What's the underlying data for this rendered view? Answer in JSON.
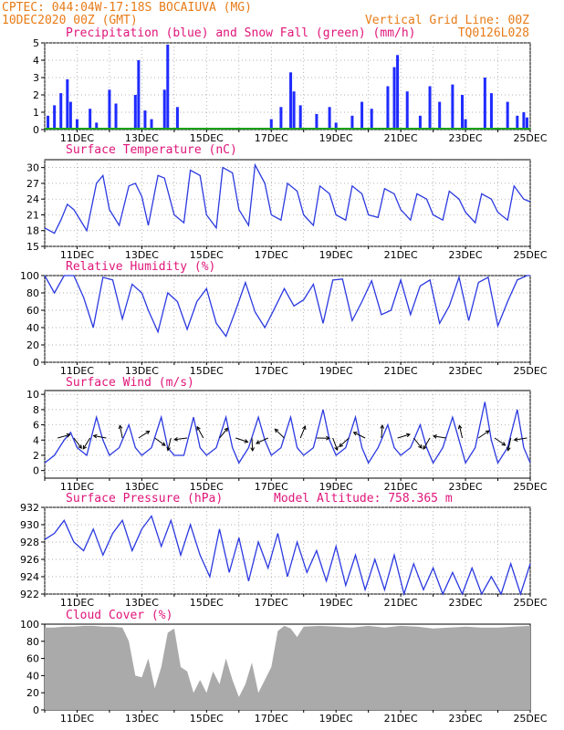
{
  "header": {
    "line1": "CPTEC:   044:04W-17:18S   BOCAIUVA (MG)",
    "line2_left": "10DEC2020 00Z (GMT)",
    "line2_right": "Vertical Grid Line: 00Z",
    "code": "TQ0126L028"
  },
  "colors": {
    "header": "#e87b17",
    "titles": "#e0157a",
    "line": "#2b39e0",
    "bar": "#1f2bff",
    "snow": "#19a319",
    "cloud": "#aaaaaa",
    "arrow": "#000000"
  },
  "chart_data": [
    {
      "type": "bar",
      "title": "Precipitation (blue) and Snow Fall (green) (mm/h)",
      "xlabel": "",
      "ylabel": "",
      "x_range_days": [
        10,
        25
      ],
      "x_tick_labels": [
        "11DEC",
        "13DEC",
        "15DEC",
        "17DEC",
        "19DEC",
        "21DEC",
        "23DEC",
        "25DEC"
      ],
      "ylim": [
        0,
        5
      ],
      "y_ticks": [
        0,
        1,
        2,
        3,
        4,
        5
      ],
      "grid": true,
      "series": [
        {
          "name": "Precipitation",
          "color": "blue",
          "x": [
            10.1,
            10.3,
            10.5,
            10.7,
            10.8,
            11.0,
            11.4,
            11.6,
            12.0,
            12.2,
            12.8,
            12.9,
            13.1,
            13.3,
            13.7,
            13.8,
            14.1,
            17.0,
            17.3,
            17.6,
            17.7,
            17.9,
            18.4,
            18.8,
            19.0,
            19.5,
            19.8,
            20.1,
            20.6,
            20.8,
            20.9,
            21.2,
            21.6,
            21.9,
            22.2,
            22.6,
            22.9,
            23.0,
            23.6,
            23.8,
            24.3,
            24.6,
            24.8,
            24.9
          ],
          "values": [
            0.8,
            1.4,
            2.1,
            2.9,
            1.6,
            0.6,
            1.2,
            0.4,
            2.3,
            1.5,
            2.0,
            4.0,
            1.1,
            0.6,
            2.3,
            4.9,
            1.3,
            0.6,
            1.3,
            3.3,
            2.2,
            1.4,
            0.9,
            1.3,
            0.4,
            0.8,
            1.6,
            1.2,
            2.5,
            3.6,
            4.3,
            2.2,
            0.8,
            2.5,
            1.6,
            2.6,
            2.0,
            0.6,
            3.0,
            2.1,
            1.6,
            0.8,
            1.0,
            0.7
          ]
        },
        {
          "name": "Snow Fall",
          "color": "green",
          "x": [
            10,
            25
          ],
          "values": [
            0,
            0
          ]
        }
      ]
    },
    {
      "type": "line",
      "title": "Surface Temperature (nC)",
      "xlabel": "",
      "ylabel": "",
      "x_range_days": [
        10,
        25
      ],
      "x_tick_labels": [
        "11DEC",
        "13DEC",
        "15DEC",
        "17DEC",
        "19DEC",
        "21DEC",
        "23DEC",
        "25DEC"
      ],
      "ylim": [
        15,
        31.5
      ],
      "y_ticks": [
        15,
        18,
        21,
        24,
        27,
        30
      ],
      "grid": true,
      "x": [
        10.0,
        10.3,
        10.5,
        10.7,
        10.9,
        11.0,
        11.3,
        11.6,
        11.8,
        12.0,
        12.3,
        12.6,
        12.8,
        13.0,
        13.2,
        13.5,
        13.7,
        14.0,
        14.3,
        14.5,
        14.8,
        15.0,
        15.3,
        15.5,
        15.8,
        16.0,
        16.3,
        16.5,
        16.8,
        17.0,
        17.3,
        17.5,
        17.8,
        18.0,
        18.3,
        18.5,
        18.8,
        19.0,
        19.3,
        19.5,
        19.8,
        20.0,
        20.3,
        20.5,
        20.8,
        21.0,
        21.3,
        21.5,
        21.8,
        22.0,
        22.3,
        22.5,
        22.8,
        23.0,
        23.3,
        23.5,
        23.8,
        24.0,
        24.3,
        24.5,
        24.8,
        25.0
      ],
      "values": [
        18.5,
        17.5,
        20.0,
        23.0,
        22.0,
        21.0,
        18.0,
        27.0,
        28.5,
        22.0,
        19.0,
        26.5,
        27.0,
        24.5,
        19.0,
        28.5,
        28.0,
        21.0,
        19.5,
        29.5,
        28.5,
        21.0,
        18.5,
        30.0,
        29.0,
        22.0,
        19.0,
        30.5,
        27.0,
        21.0,
        20.0,
        27.0,
        25.5,
        21.0,
        19.0,
        26.5,
        25.0,
        21.0,
        20.0,
        26.5,
        25.0,
        21.0,
        20.5,
        26.0,
        25.0,
        22.0,
        20.0,
        25.0,
        24.0,
        21.0,
        20.0,
        25.5,
        24.0,
        21.5,
        19.5,
        25.0,
        24.0,
        21.5,
        20.0,
        26.5,
        24.0,
        23.5
      ]
    },
    {
      "type": "line",
      "title": "Relative Humidity (%)",
      "xlabel": "",
      "ylabel": "",
      "x_range_days": [
        10,
        25
      ],
      "x_tick_labels": [
        "11DEC",
        "13DEC",
        "15DEC",
        "17DEC",
        "19DEC",
        "21DEC",
        "23DEC",
        "25DEC"
      ],
      "ylim": [
        0,
        100
      ],
      "y_ticks": [
        0,
        20,
        40,
        60,
        80,
        100
      ],
      "grid": true,
      "x": [
        10.0,
        10.3,
        10.6,
        10.9,
        11.2,
        11.5,
        11.8,
        12.1,
        12.4,
        12.7,
        13.0,
        13.2,
        13.5,
        13.8,
        14.1,
        14.4,
        14.7,
        15.0,
        15.3,
        15.6,
        15.9,
        16.2,
        16.5,
        16.8,
        17.1,
        17.4,
        17.7,
        18.0,
        18.3,
        18.6,
        18.9,
        19.2,
        19.5,
        19.8,
        20.1,
        20.4,
        20.7,
        21.0,
        21.3,
        21.6,
        21.9,
        22.2,
        22.5,
        22.8,
        23.1,
        23.4,
        23.7,
        24.0,
        24.3,
        24.6,
        24.9,
        25.0
      ],
      "values": [
        100,
        80,
        100,
        100,
        75,
        40,
        98,
        95,
        50,
        90,
        80,
        60,
        35,
        80,
        70,
        38,
        70,
        85,
        45,
        30,
        60,
        92,
        58,
        40,
        62,
        85,
        65,
        72,
        90,
        45,
        95,
        96,
        48,
        70,
        94,
        55,
        60,
        95,
        55,
        88,
        95,
        45,
        65,
        98,
        48,
        92,
        98,
        42,
        70,
        95,
        100,
        100
      ]
    },
    {
      "type": "line",
      "title": "Surface Wind (m/s)",
      "xlabel": "",
      "ylabel": "",
      "x_range_days": [
        10,
        25
      ],
      "x_tick_labels": [
        "11DEC",
        "13DEC",
        "15DEC",
        "17DEC",
        "19DEC",
        "21DEC",
        "23DEC",
        "25DEC"
      ],
      "ylim": [
        -1,
        10.5
      ],
      "y_ticks": [
        0,
        2,
        4,
        6,
        8,
        10
      ],
      "grid": true,
      "x": [
        10.0,
        10.3,
        10.6,
        10.8,
        11.0,
        11.3,
        11.6,
        11.8,
        12.0,
        12.3,
        12.6,
        12.8,
        13.0,
        13.3,
        13.6,
        13.8,
        14.0,
        14.3,
        14.6,
        14.8,
        15.0,
        15.3,
        15.6,
        15.8,
        16.0,
        16.3,
        16.6,
        16.8,
        17.0,
        17.3,
        17.6,
        17.8,
        18.0,
        18.3,
        18.6,
        18.8,
        19.0,
        19.3,
        19.6,
        19.8,
        20.0,
        20.3,
        20.6,
        20.8,
        21.0,
        21.3,
        21.6,
        21.8,
        22.0,
        22.3,
        22.6,
        22.8,
        23.0,
        23.3,
        23.6,
        23.8,
        24.0,
        24.3,
        24.6,
        24.8,
        25.0
      ],
      "values": [
        1,
        2,
        4,
        5,
        3,
        2,
        7,
        4,
        2,
        3,
        6,
        3,
        2,
        3,
        7,
        3,
        2,
        2,
        7,
        3,
        2,
        3,
        7,
        3,
        1,
        3,
        7,
        4,
        2,
        3,
        7,
        3,
        2,
        3,
        8,
        4,
        2,
        3,
        7,
        3,
        1,
        3,
        6,
        3,
        2,
        3,
        6,
        3,
        1,
        3,
        7,
        4,
        1,
        3,
        9,
        4,
        1,
        3,
        8,
        3,
        1
      ],
      "vector_arrows": true
    },
    {
      "type": "line",
      "title": "Surface Pressure (hPa)",
      "subtitle": "Model Altitude: 758.365 m",
      "xlabel": "",
      "ylabel": "",
      "x_range_days": [
        10,
        25
      ],
      "x_tick_labels": [
        "11DEC",
        "13DEC",
        "15DEC",
        "17DEC",
        "19DEC",
        "21DEC",
        "23DEC",
        "25DEC"
      ],
      "ylim": [
        922,
        932
      ],
      "y_ticks": [
        922,
        924,
        926,
        928,
        930,
        932
      ],
      "grid": true,
      "x": [
        10.0,
        10.3,
        10.6,
        10.9,
        11.2,
        11.5,
        11.8,
        12.1,
        12.4,
        12.7,
        13.0,
        13.3,
        13.6,
        13.9,
        14.2,
        14.5,
        14.8,
        15.1,
        15.4,
        15.7,
        16.0,
        16.3,
        16.6,
        16.9,
        17.2,
        17.5,
        17.8,
        18.1,
        18.4,
        18.7,
        19.0,
        19.3,
        19.6,
        19.9,
        20.2,
        20.5,
        20.8,
        21.1,
        21.4,
        21.7,
        22.0,
        22.3,
        22.6,
        22.9,
        23.2,
        23.5,
        23.8,
        24.1,
        24.4,
        24.7,
        25.0
      ],
      "values": [
        928.3,
        929.0,
        930.5,
        928.0,
        927.0,
        929.5,
        926.5,
        929.0,
        930.5,
        927.0,
        929.5,
        931.0,
        927.5,
        930.5,
        926.5,
        930.0,
        926.5,
        924.0,
        929.5,
        924.5,
        928.5,
        923.5,
        928.0,
        925.0,
        929.0,
        924.0,
        928.0,
        924.5,
        927.0,
        923.5,
        927.5,
        923.0,
        926.5,
        922.5,
        926.0,
        922.5,
        926.5,
        922.0,
        925.5,
        922.5,
        925.0,
        922.0,
        924.5,
        922.0,
        925.0,
        922.0,
        924.0,
        922.0,
        925.5,
        922.0,
        925.5
      ]
    },
    {
      "type": "area",
      "title": "Cloud Cover (%)",
      "xlabel": "",
      "ylabel": "",
      "x_range_days": [
        10,
        25
      ],
      "x_tick_labels": [
        "11DEC",
        "13DEC",
        "15DEC",
        "17DEC",
        "19DEC",
        "21DEC",
        "23DEC",
        "25DEC"
      ],
      "ylim": [
        0,
        100
      ],
      "y_ticks": [
        0,
        20,
        40,
        60,
        80,
        100
      ],
      "grid": false,
      "x": [
        10.0,
        10.3,
        10.6,
        10.9,
        11.2,
        11.5,
        11.8,
        12.1,
        12.4,
        12.6,
        12.8,
        13.0,
        13.2,
        13.4,
        13.6,
        13.8,
        14.0,
        14.2,
        14.4,
        14.6,
        14.8,
        15.0,
        15.2,
        15.4,
        15.6,
        15.8,
        16.0,
        16.2,
        16.4,
        16.6,
        16.8,
        17.0,
        17.2,
        17.4,
        17.6,
        17.8,
        18.0,
        18.5,
        19.0,
        19.5,
        20.0,
        20.5,
        21.0,
        21.5,
        22.0,
        22.5,
        23.0,
        23.5,
        24.0,
        24.5,
        25.0
      ],
      "values": [
        96,
        96,
        97,
        97,
        98,
        98,
        97,
        97,
        96,
        80,
        40,
        38,
        60,
        25,
        50,
        90,
        95,
        50,
        45,
        20,
        35,
        20,
        45,
        30,
        60,
        35,
        15,
        30,
        55,
        20,
        35,
        50,
        92,
        98,
        95,
        85,
        97,
        98,
        97,
        96,
        98,
        96,
        98,
        97,
        95,
        96,
        97,
        96,
        96,
        97,
        98
      ]
    }
  ]
}
